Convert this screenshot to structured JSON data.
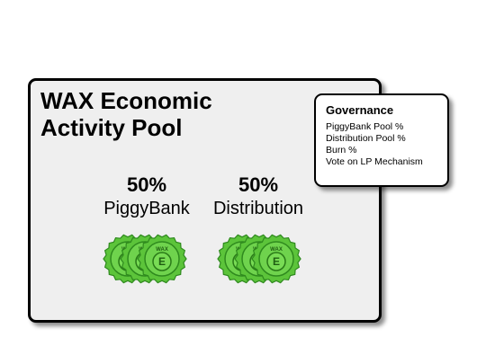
{
  "pool": {
    "title": "WAX Economic Activity Pool",
    "columns": [
      {
        "percent": "50%",
        "label": "PiggyBank",
        "token_count": 3
      },
      {
        "percent": "50%",
        "label": "Distribution",
        "token_count": 3
      }
    ],
    "token": {
      "ring_text": "WAX",
      "center_letter": "E",
      "color": "#5cc43a",
      "rim_color": "#2f8a1e"
    }
  },
  "governance": {
    "title": "Governance",
    "items": [
      "PiggyBank Pool %",
      "Distribution Pool %",
      "Burn %",
      "Vote on LP Mechanism"
    ]
  }
}
